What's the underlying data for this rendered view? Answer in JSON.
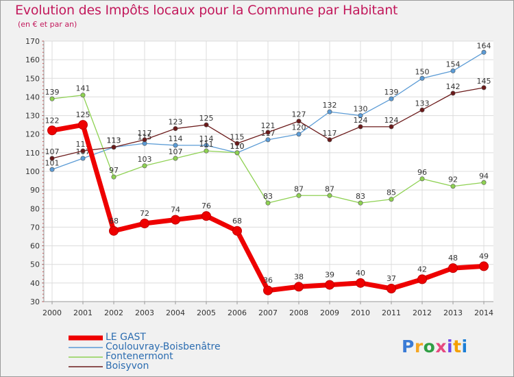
{
  "chart_data": {
    "type": "line",
    "title": "Evolution des Impôts locaux pour la Commune par Habitant",
    "subtitle": "(en € et par an)",
    "xlabel": "",
    "ylabel": "",
    "categories": [
      "2000",
      "2001",
      "2002",
      "2003",
      "2004",
      "2005",
      "2006",
      "2007",
      "2008",
      "2009",
      "2010",
      "2011",
      "2012",
      "2013",
      "2014"
    ],
    "ylim": [
      30,
      170
    ],
    "yticks": [
      30,
      40,
      50,
      60,
      70,
      80,
      90,
      100,
      110,
      120,
      130,
      140,
      150,
      160,
      170
    ],
    "grid": true,
    "series": [
      {
        "name": "LE GAST",
        "color": "#ee0000",
        "values": [
          122,
          125,
          68,
          72,
          74,
          76,
          68,
          36,
          38,
          39,
          40,
          37,
          42,
          48,
          49
        ]
      },
      {
        "name": "Coulouvray-Boisbenâtre",
        "color": "#5b9bd5",
        "values": [
          101,
          107,
          113,
          115,
          114,
          114,
          110,
          117,
          120,
          132,
          130,
          139,
          150,
          154,
          164
        ]
      },
      {
        "name": "Fontenermont",
        "color": "#8ed152",
        "values": [
          139,
          141,
          97,
          103,
          107,
          111,
          110,
          83,
          87,
          87,
          83,
          85,
          96,
          92,
          94
        ]
      },
      {
        "name": "Boisyvon",
        "color": "#6b1a1a",
        "values": [
          107,
          111,
          113,
          117,
          123,
          125,
          115,
          121,
          127,
          117,
          124,
          124,
          133,
          142,
          145
        ]
      }
    ]
  },
  "logo": {
    "text": "Proxiti",
    "letters": [
      "P",
      "r",
      "o",
      "x",
      "i",
      "t",
      "i"
    ],
    "colors": [
      "#3a7bd5",
      "#f5a623",
      "#2f9e44",
      "#e64980",
      "#7048e8",
      "#f59f00",
      "#1c7ed6"
    ]
  }
}
